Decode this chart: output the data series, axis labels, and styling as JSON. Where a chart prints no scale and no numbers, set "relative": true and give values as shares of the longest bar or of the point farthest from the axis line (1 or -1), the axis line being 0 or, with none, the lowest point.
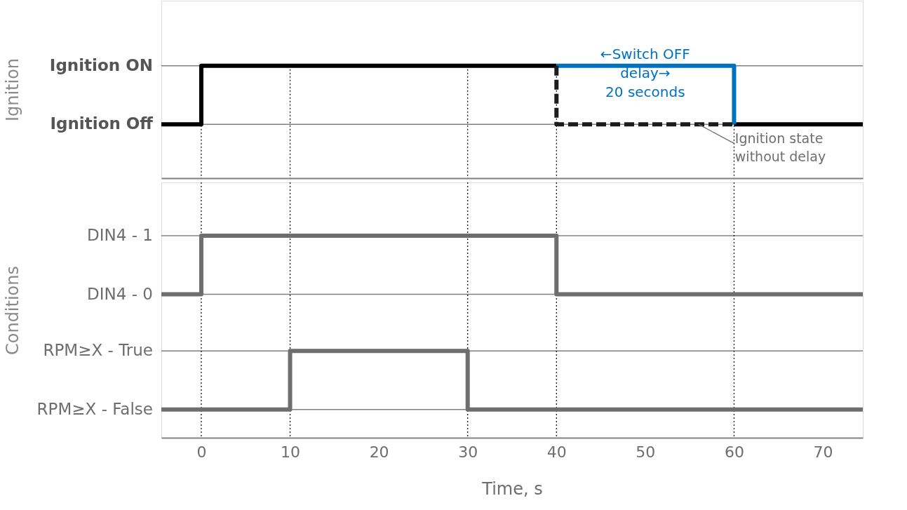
{
  "chart_data": [
    {
      "type": "line",
      "relative": true,
      "ylabel": "Ignition",
      "xlim": [
        -4.5,
        74.5
      ],
      "tick_labels": false,
      "marker": "none",
      "series": [
        {
          "color": "#000000",
          "x": [
            -4.5,
            0,
            0,
            40,
            50,
            60,
            74.5
          ],
          "values": [
            0.48,
            0.48,
            1,
            1,
            null,
            0.48,
            0.48
          ],
          "line_style": "solid"
        },
        {
          "color": "#0070c0",
          "x": [
            40,
            60,
            60
          ],
          "values": [
            1,
            1,
            0.48
          ],
          "line_style": "solid"
        },
        {
          "color": "#1c1c1c",
          "x": [
            40,
            40,
            60
          ],
          "values": [
            1,
            0.48,
            0.48
          ],
          "line_style": "dashed"
        }
      ],
      "ref_lines": [
        {
          "axis": "y",
          "value": 1,
          "color": "#808080",
          "label": "Ignition ON"
        },
        {
          "axis": "y",
          "value": 0.48,
          "color": "#808080",
          "label": "Ignition Off"
        },
        {
          "axis": "x",
          "value": 0,
          "line_style": "dotted"
        },
        {
          "axis": "x",
          "value": 10,
          "line_style": "dotted"
        },
        {
          "axis": "x",
          "value": 30,
          "line_style": "dotted"
        },
        {
          "axis": "x",
          "value": 40,
          "line_style": "dotted"
        },
        {
          "axis": "x",
          "value": 60,
          "line_style": "dotted"
        }
      ],
      "annotations": [
        "←Switch OFF\ndelay→\n20 seconds",
        {
          "text": "Ignition state\nwithout delay",
          "x": 56,
          "y": 0.48
        }
      ]
    },
    {
      "type": "line",
      "relative": true,
      "ylabel": "Conditions",
      "xlabel": "Time, s",
      "xlim": [
        -4.5,
        74.5
      ],
      "tick_labels": "x",
      "xticks": [
        0,
        10,
        20,
        30,
        40,
        50,
        60,
        70
      ],
      "marker": "none",
      "series": [
        {
          "color": "#6e6e6e",
          "x": [
            -4.5,
            0,
            0,
            40,
            40,
            74.5
          ],
          "values": [
            0.71,
            0.71,
            1,
            1,
            0.71,
            0.71
          ],
          "line_style": "solid"
        },
        {
          "color": "#6e6e6e",
          "x": [
            -4.5,
            10,
            10,
            30,
            30,
            74.5
          ],
          "values": [
            0.14,
            0.14,
            0.43,
            0.43,
            0.14,
            0.14
          ],
          "line_style": "solid"
        }
      ],
      "ref_lines": [
        {
          "axis": "y",
          "value": 1,
          "color": "#808080",
          "label": "DIN4 - 1"
        },
        {
          "axis": "y",
          "value": 0.71,
          "color": "#808080",
          "label": "DIN4 - 0"
        },
        {
          "axis": "y",
          "value": 0.43,
          "color": "#808080",
          "label": "RPM≥X - True"
        },
        {
          "axis": "y",
          "value": 0.14,
          "color": "#808080",
          "label": "RPM≥X - False"
        },
        {
          "axis": "x",
          "value": 0,
          "line_style": "dotted"
        },
        {
          "axis": "x",
          "value": 10,
          "line_style": "dotted"
        },
        {
          "axis": "x",
          "value": 30,
          "line_style": "dotted"
        },
        {
          "axis": "x",
          "value": 40,
          "line_style": "dotted"
        },
        {
          "axis": "x",
          "value": 60,
          "line_style": "dotted"
        }
      ]
    }
  ]
}
